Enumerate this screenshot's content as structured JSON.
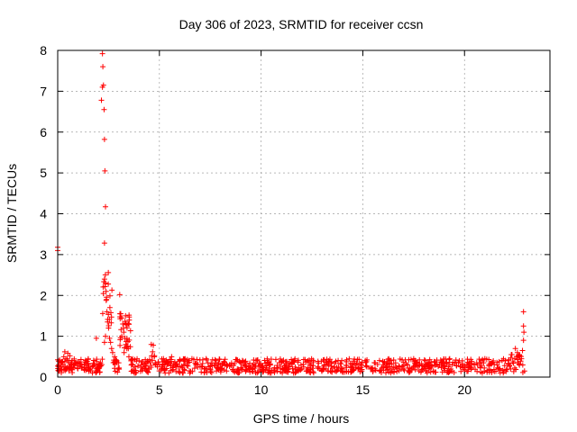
{
  "chart_data": {
    "type": "scatter",
    "title": "Day 306 of 2023, SRMTID for receiver ccsn",
    "xlabel": "GPS time / hours",
    "ylabel": "SRMTID / TECUs",
    "xlim": [
      0,
      24.2
    ],
    "ylim": [
      0,
      8
    ],
    "xticks": [
      0,
      5,
      10,
      15,
      20
    ],
    "yticks": [
      0,
      1,
      2,
      3,
      4,
      5,
      6,
      7,
      8
    ],
    "grid": true,
    "marker": "+",
    "color": "#ff0000",
    "series": [
      {
        "name": "SRMTID",
        "points": [
          [
            0.0,
            3.18
          ],
          [
            0.0,
            3.1
          ],
          [
            0.05,
            0.3
          ],
          [
            0.1,
            0.42
          ],
          [
            0.15,
            0.25
          ],
          [
            0.2,
            0.38
          ],
          [
            0.3,
            0.5
          ],
          [
            0.35,
            0.62
          ],
          [
            0.4,
            0.45
          ],
          [
            0.5,
            0.58
          ],
          [
            0.55,
            0.35
          ],
          [
            0.6,
            0.52
          ],
          [
            0.7,
            0.4
          ],
          [
            0.8,
            0.3
          ],
          [
            0.9,
            0.35
          ],
          [
            1.0,
            0.28
          ],
          [
            1.1,
            0.32
          ],
          [
            1.2,
            0.25
          ],
          [
            1.3,
            0.3
          ],
          [
            1.4,
            0.22
          ],
          [
            1.5,
            0.28
          ],
          [
            1.6,
            0.2
          ],
          [
            1.7,
            0.25
          ],
          [
            1.8,
            0.3
          ],
          [
            1.9,
            0.95
          ],
          [
            2.0,
            0.3
          ],
          [
            2.05,
            0.25
          ],
          [
            2.1,
            0.35
          ],
          [
            2.15,
            6.78
          ],
          [
            2.2,
            7.92
          ],
          [
            2.2,
            7.1
          ],
          [
            2.22,
            7.6
          ],
          [
            2.25,
            7.15
          ],
          [
            2.28,
            6.55
          ],
          [
            2.3,
            5.82
          ],
          [
            2.32,
            5.05
          ],
          [
            2.35,
            4.17
          ],
          [
            2.3,
            3.28
          ],
          [
            2.3,
            2.4
          ],
          [
            2.35,
            2.3
          ],
          [
            2.38,
            2.1
          ],
          [
            2.4,
            1.9
          ],
          [
            2.42,
            1.6
          ],
          [
            2.45,
            1.35
          ],
          [
            2.35,
            1.0
          ],
          [
            2.3,
            0.85
          ],
          [
            2.5,
            1.2
          ],
          [
            2.55,
            0.95
          ],
          [
            2.6,
            0.85
          ],
          [
            2.65,
            0.7
          ],
          [
            2.7,
            0.6
          ],
          [
            2.8,
            0.5
          ],
          [
            2.9,
            0.4
          ],
          [
            3.0,
            0.35
          ],
          [
            3.05,
            2.02
          ],
          [
            3.1,
            1.55
          ],
          [
            3.15,
            1.45
          ],
          [
            3.2,
            1.3
          ],
          [
            3.25,
            1.1
          ],
          [
            3.3,
            0.95
          ],
          [
            3.35,
            0.8
          ],
          [
            3.4,
            0.7
          ],
          [
            3.5,
            0.5
          ],
          [
            3.6,
            0.4
          ],
          [
            3.7,
            0.3
          ],
          [
            3.8,
            0.25
          ],
          [
            4.0,
            0.4
          ],
          [
            4.1,
            0.3
          ],
          [
            4.2,
            0.25
          ],
          [
            4.3,
            0.2
          ],
          [
            4.4,
            0.15
          ],
          [
            4.5,
            0.2
          ],
          [
            4.6,
            0.8
          ],
          [
            4.7,
            0.78
          ],
          [
            4.75,
            0.5
          ],
          [
            4.8,
            0.35
          ],
          [
            4.9,
            0.25
          ],
          [
            5.0,
            0.3
          ],
          [
            5.2,
            0.45
          ],
          [
            5.4,
            0.35
          ],
          [
            5.6,
            0.5
          ],
          [
            5.8,
            0.3
          ],
          [
            6.0,
            0.25
          ],
          [
            6.2,
            0.3
          ],
          [
            6.4,
            0.35
          ],
          [
            6.6,
            0.45
          ],
          [
            6.8,
            0.3
          ],
          [
            7.0,
            0.25
          ],
          [
            7.2,
            0.2
          ],
          [
            7.3,
            0.45
          ],
          [
            7.5,
            0.2
          ],
          [
            7.8,
            0.15
          ],
          [
            8.0,
            0.2
          ],
          [
            8.3,
            0.15
          ],
          [
            8.6,
            0.18
          ],
          [
            9.0,
            0.2
          ],
          [
            9.3,
            0.25
          ],
          [
            9.6,
            0.2
          ],
          [
            10.0,
            0.15
          ],
          [
            10.4,
            0.2
          ],
          [
            10.8,
            0.2
          ],
          [
            11.2,
            0.15
          ],
          [
            11.6,
            0.1
          ],
          [
            12.0,
            0.2
          ],
          [
            12.4,
            0.3
          ],
          [
            12.8,
            0.25
          ],
          [
            13.2,
            0.2
          ],
          [
            13.6,
            0.25
          ],
          [
            14.0,
            0.2
          ],
          [
            14.4,
            0.25
          ],
          [
            14.8,
            0.2
          ],
          [
            15.2,
            0.25
          ],
          [
            15.6,
            0.2
          ],
          [
            16.0,
            0.25
          ],
          [
            16.4,
            0.2
          ],
          [
            16.8,
            0.25
          ],
          [
            17.2,
            0.3
          ],
          [
            17.5,
            0.45
          ],
          [
            17.8,
            0.3
          ],
          [
            18.2,
            0.25
          ],
          [
            18.6,
            0.3
          ],
          [
            19.0,
            0.25
          ],
          [
            19.4,
            0.3
          ],
          [
            19.8,
            0.25
          ],
          [
            20.2,
            0.3
          ],
          [
            20.6,
            0.35
          ],
          [
            21.0,
            0.45
          ],
          [
            21.2,
            0.3
          ],
          [
            21.6,
            0.3
          ],
          [
            22.0,
            0.4
          ],
          [
            22.3,
            0.55
          ],
          [
            22.5,
            0.7
          ],
          [
            22.6,
            0.6
          ],
          [
            22.7,
            0.5
          ],
          [
            22.8,
            0.45
          ],
          [
            22.85,
            0.65
          ],
          [
            22.9,
            1.6
          ],
          [
            22.9,
            1.25
          ],
          [
            22.92,
            1.1
          ],
          [
            22.9,
            0.9
          ],
          [
            22.95,
            0.15
          ]
        ]
      }
    ]
  }
}
